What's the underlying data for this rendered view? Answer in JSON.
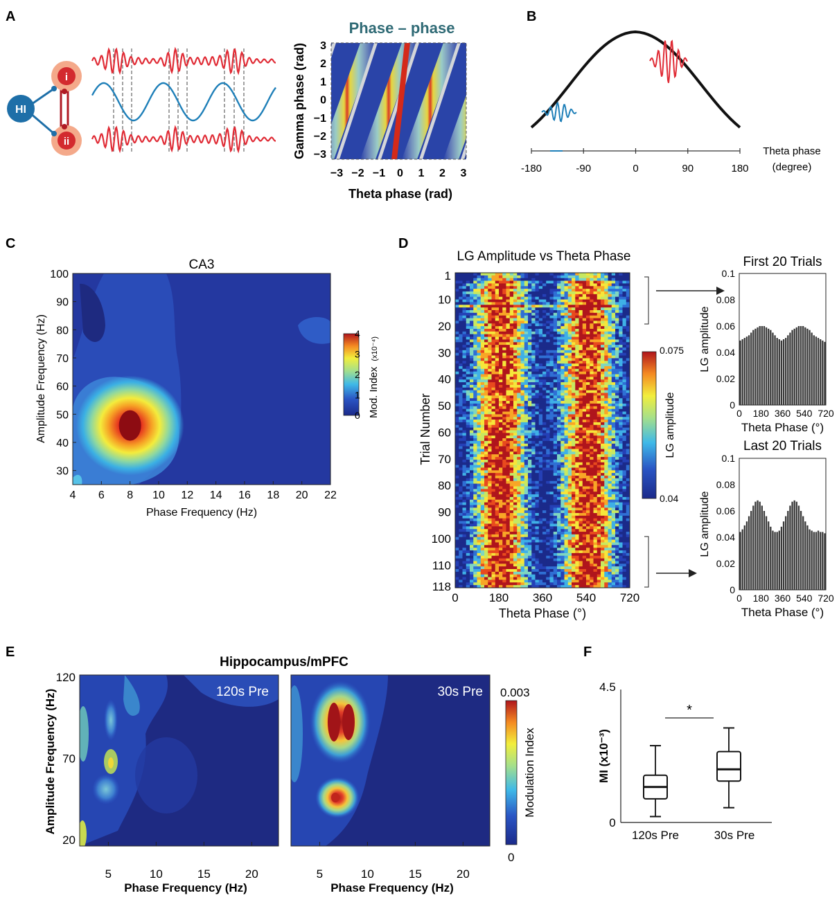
{
  "panel_letters": {
    "A": "A",
    "B": "B",
    "C": "C",
    "D": "D",
    "E": "E",
    "F": "F"
  },
  "panelA": {
    "node_hi": "HI",
    "node_i": "i",
    "node_ii": "ii",
    "heatmap_title": "Phase – phase",
    "xlabel": "Theta phase (rad)",
    "ylabel": "Gamma phase (rad)",
    "xticks": [
      "−3",
      "−2",
      "−1",
      "0",
      "1",
      "2",
      "3"
    ],
    "yticks": [
      "3",
      "2",
      "1",
      "0",
      "−1",
      "−2",
      "−3"
    ]
  },
  "panelB": {
    "xticks": [
      "-180",
      "-90",
      "0",
      "90",
      "180"
    ],
    "xlabel_line1": "Theta phase",
    "xlabel_line2": "(degree)"
  },
  "colors": {
    "red": "#e02b35",
    "blue": "#1e7fb8",
    "navy": "#1b2a8a",
    "dark": "#111111"
  },
  "chart_data": [
    {
      "id": "C",
      "type": "heatmap",
      "title": "CA3",
      "xlabel": "Phase Frequency (Hz)",
      "ylabel": "Amplitude Frequency (Hz)",
      "xticks": [
        "4",
        "6",
        "8",
        "10",
        "12",
        "14",
        "16",
        "18",
        "20",
        "22"
      ],
      "yticks": [
        "100",
        "90",
        "80",
        "70",
        "60",
        "50",
        "40",
        "30"
      ],
      "xlim": [
        4,
        22
      ],
      "ylim": [
        25,
        100
      ],
      "peak": {
        "x": 8,
        "y": 46
      },
      "colorbar": {
        "label": "Mod. Index",
        "unit": "(x10⁻⁴)",
        "ticks": [
          "4",
          "3",
          "2",
          "1",
          "0"
        ],
        "range": [
          0,
          4
        ]
      }
    },
    {
      "id": "D-main",
      "type": "heatmap",
      "title": "LG Amplitude vs Theta Phase",
      "xlabel": "Theta Phase (°)",
      "ylabel": "Trial Number",
      "xticks": [
        "0",
        "180",
        "360",
        "540",
        "720"
      ],
      "yticks": [
        "1",
        "10",
        "20",
        "30",
        "40",
        "50",
        "60",
        "70",
        "80",
        "90",
        "100",
        "110",
        "118"
      ],
      "colorbar": {
        "label": "LG amplitude",
        "ticks": [
          "0.075",
          "0.04"
        ],
        "range": [
          0.04,
          0.075
        ]
      }
    },
    {
      "id": "D-first",
      "type": "bar",
      "title": "First 20 Trials",
      "xlabel": "Theta Phase (°)",
      "ylabel": "LG amplitude",
      "xticks": [
        "0",
        "180",
        "360",
        "540",
        "720"
      ],
      "yticks": [
        "0.1",
        "0.08",
        "0.06",
        "0.04",
        "0.02",
        "0"
      ],
      "ylim": [
        0,
        0.1
      ],
      "values": [
        0.049,
        0.05,
        0.051,
        0.052,
        0.053,
        0.055,
        0.057,
        0.058,
        0.059,
        0.06,
        0.06,
        0.06,
        0.059,
        0.058,
        0.057,
        0.055,
        0.053,
        0.051,
        0.05,
        0.049,
        0.05,
        0.051,
        0.053,
        0.055,
        0.057,
        0.058,
        0.059,
        0.06,
        0.06,
        0.06,
        0.059,
        0.058,
        0.057,
        0.055,
        0.053,
        0.052,
        0.051,
        0.05,
        0.049,
        0.048
      ]
    },
    {
      "id": "D-last",
      "type": "bar",
      "title": "Last 20 Trials",
      "xlabel": "Theta Phase (°)",
      "ylabel": "LG amplitude",
      "xticks": [
        "0",
        "180",
        "360",
        "540",
        "720"
      ],
      "yticks": [
        "0.1",
        "0.08",
        "0.06",
        "0.04",
        "0.02",
        "0"
      ],
      "ylim": [
        0,
        0.1
      ],
      "values": [
        0.044,
        0.046,
        0.049,
        0.052,
        0.056,
        0.06,
        0.064,
        0.067,
        0.068,
        0.067,
        0.064,
        0.06,
        0.056,
        0.052,
        0.048,
        0.045,
        0.044,
        0.044,
        0.045,
        0.048,
        0.052,
        0.056,
        0.06,
        0.064,
        0.067,
        0.068,
        0.067,
        0.064,
        0.06,
        0.056,
        0.052,
        0.049,
        0.046,
        0.045,
        0.044,
        0.044,
        0.045,
        0.044,
        0.044,
        0.043
      ]
    },
    {
      "id": "E",
      "type": "heatmap",
      "title": "Hippocampus/mPFC",
      "xlabel": "Phase Frequency (Hz)",
      "ylabel": "Amplitude Frequency (Hz)",
      "subplots": [
        "120s Pre",
        "30s Pre"
      ],
      "xticks": [
        "5",
        "10",
        "15",
        "20"
      ],
      "yticks": [
        "120",
        "70",
        "20"
      ],
      "colorbar": {
        "label": "Modulation Index",
        "ticks": [
          "0.003",
          "0"
        ],
        "range": [
          0,
          0.003
        ]
      }
    },
    {
      "id": "F",
      "type": "box",
      "ylabel": "MI (x10⁻³)",
      "categories": [
        "120s Pre",
        "30s Pre"
      ],
      "yticks": [
        "4.5",
        "0"
      ],
      "ylim": [
        0,
        4.5
      ],
      "series": [
        {
          "name": "120s Pre",
          "whisker_low": 0.2,
          "q1": 0.8,
          "median": 1.2,
          "q3": 1.6,
          "whisker_high": 2.6
        },
        {
          "name": "30s Pre",
          "whisker_low": 0.5,
          "q1": 1.4,
          "median": 1.8,
          "q3": 2.4,
          "whisker_high": 3.2
        }
      ],
      "annotation": "*"
    }
  ]
}
